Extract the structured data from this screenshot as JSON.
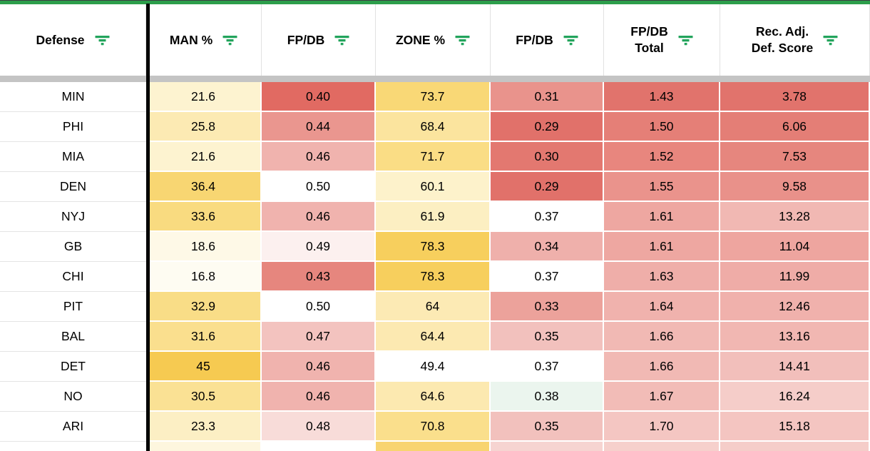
{
  "theme": {
    "top_border_green": "#2c9e4b",
    "freeze_bar_gray": "#c4c4c4",
    "freeze_border_black": "#000000",
    "filter_icon_green": "#23a45d",
    "gridline_gray": "#e1e1e1"
  },
  "table": {
    "columns": [
      {
        "label": "Defense",
        "icon": "filter-icon"
      },
      {
        "label": "MAN %",
        "icon": "filter-icon"
      },
      {
        "label": "FP/DB",
        "icon": "filter-icon"
      },
      {
        "label": "ZONE %",
        "icon": "filter-icon"
      },
      {
        "label": "FP/DB",
        "icon": "filter-icon"
      },
      {
        "label": "FP/DB\nTotal",
        "icon": "filter-icon"
      },
      {
        "label": "Rec. Adj.\nDef. Score",
        "icon": "filter-icon"
      }
    ],
    "rows": [
      {
        "team": "MIN",
        "values": [
          "21.6",
          "0.40",
          "73.7",
          "0.31",
          "1.43",
          "3.78"
        ],
        "colors": [
          "#FDF3D0",
          "#E16A62",
          "#F9D876",
          "#E9938C",
          "#E1736C",
          "#E1736C"
        ]
      },
      {
        "team": "PHI",
        "values": [
          "25.8",
          "0.44",
          "68.4",
          "0.29",
          "1.50",
          "6.06"
        ],
        "colors": [
          "#FCEAB3",
          "#EA968F",
          "#FBE49E",
          "#E1716A",
          "#E57F77",
          "#E47E76"
        ]
      },
      {
        "team": "MIA",
        "values": [
          "21.6",
          "0.46",
          "71.7",
          "0.30",
          "1.52",
          "7.53"
        ],
        "colors": [
          "#FDF3D0",
          "#F0B3AE",
          "#FADD85",
          "#E37870",
          "#E8867E",
          "#E6867E"
        ]
      },
      {
        "team": "DEN",
        "values": [
          "36.4",
          "0.50",
          "60.1",
          "0.29",
          "1.55",
          "9.58"
        ],
        "colors": [
          "#F8D672",
          "#FFFFFF",
          "#FDF2CB",
          "#E1716A",
          "#EA938C",
          "#E9918A"
        ]
      },
      {
        "team": "NYJ",
        "values": [
          "33.6",
          "0.46",
          "61.9",
          "0.37",
          "1.61",
          "13.28"
        ],
        "colors": [
          "#F9DB80",
          "#F0B3AE",
          "#FCEFC2",
          "#FFFFFF",
          "#EEA7A1",
          "#F1B8B3"
        ]
      },
      {
        "team": "GB",
        "values": [
          "18.6",
          "0.49",
          "78.3",
          "0.34",
          "1.61",
          "11.04"
        ],
        "colors": [
          "#FEF9E7",
          "#FCF0EF",
          "#F7CF5D",
          "#EFB0AB",
          "#EEA7A1",
          "#EEA59F"
        ]
      },
      {
        "team": "CHI",
        "values": [
          "16.8",
          "0.43",
          "78.3",
          "0.37",
          "1.63",
          "11.99"
        ],
        "colors": [
          "#FEFCF2",
          "#E6867E",
          "#F7CF5D",
          "#FFFFFF",
          "#EFAEA9",
          "#EFACA7"
        ]
      },
      {
        "team": "PIT",
        "values": [
          "32.9",
          "0.50",
          "64",
          "0.33",
          "1.64",
          "12.46"
        ],
        "colors": [
          "#F9DD87",
          "#FFFFFF",
          "#FCEAB4",
          "#ECA29B",
          "#F0B2AD",
          "#F0B1AC"
        ]
      },
      {
        "team": "BAL",
        "values": [
          "31.6",
          "0.47",
          "64.4",
          "0.35",
          "1.66",
          "13.16"
        ],
        "colors": [
          "#FADF8E",
          "#F3C3BF",
          "#FCE9B1",
          "#F2C1BD",
          "#F1B9B4",
          "#F1B7B2"
        ]
      },
      {
        "team": "DET",
        "values": [
          "45",
          "0.46",
          "49.4",
          "0.37",
          "1.66",
          "14.41"
        ],
        "colors": [
          "#F6CA51",
          "#F0B3AE",
          "#FFFFFF",
          "#FFFFFF",
          "#F1B9B4",
          "#F2BFBB"
        ]
      },
      {
        "team": "NO",
        "values": [
          "30.5",
          "0.46",
          "64.6",
          "0.38",
          "1.67",
          "16.24"
        ],
        "colors": [
          "#FAE194",
          "#F0B3AE",
          "#FCE9B0",
          "#EBF5EE",
          "#F2BCB7",
          "#F5CDC9"
        ]
      },
      {
        "team": "ARI",
        "values": [
          "23.3",
          "0.48",
          "70.8",
          "0.35",
          "1.70",
          "15.18"
        ],
        "colors": [
          "#FCEFC4",
          "#F8DCD9",
          "#FADF8C",
          "#F2C1BD",
          "#F4C6C2",
          "#F4C5C1"
        ]
      }
    ],
    "partial_row_colors": [
      "#FFFFFF",
      "#FDF6DE",
      "#FFFFFF",
      "#F8D470",
      "#F6D4D1",
      "#F6D0CC",
      "#F5CDC9"
    ]
  }
}
